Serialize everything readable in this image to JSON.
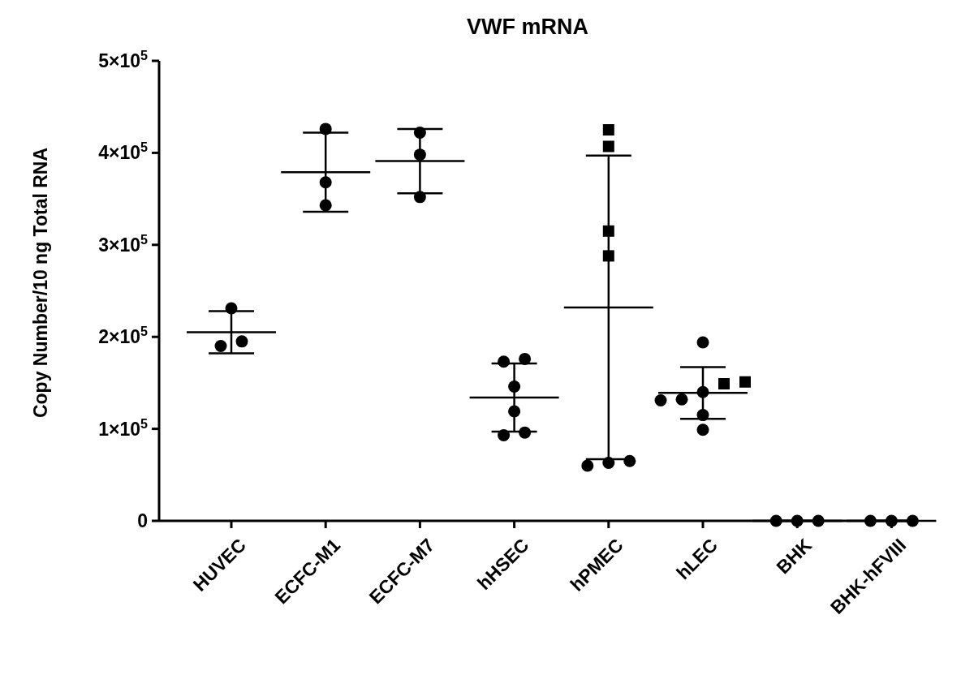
{
  "chart_data": {
    "type": "scatter",
    "title": "VWF mRNA",
    "ylabel": "Copy Number/10 ng Total RNA",
    "categories": [
      "HUVEC",
      "ECFC-M1",
      "ECFC-M7",
      "hHSEC",
      "hPMEC",
      "hLEC",
      "BHK",
      "BHK-hFVIII"
    ],
    "ylim": [
      0,
      500000
    ],
    "yticks": [
      0,
      {
        "value": 100000,
        "label": "1×10$^{5}$"
      },
      {
        "value": 200000,
        "label": "2×10$^{5}$"
      },
      {
        "value": 300000,
        "label": "3×10$^{5}$"
      },
      {
        "value": 400000,
        "label": "4×10$^{5}$"
      },
      {
        "value": 500000,
        "label": "5×10$^{5}$"
      }
    ],
    "grid": false,
    "series": [
      {
        "type": "scatter",
        "marker": "circle",
        "color": "#000000",
        "x": [
          "HUVEC",
          "HUVEC",
          "HUVEC",
          "ECFC-M1",
          "ECFC-M1",
          "ECFC-M1",
          "ECFC-M7",
          "ECFC-M7",
          "ECFC-M7",
          "hHSEC",
          "hHSEC",
          "hHSEC",
          "hHSEC",
          "hHSEC",
          "hHSEC",
          "hPMEC",
          "hPMEC",
          "hPMEC",
          "hLEC",
          "hLEC",
          "hLEC",
          "hLEC",
          "hLEC",
          "hLEC",
          "BHK",
          "BHK",
          "BHK",
          "BHK-hFVIII",
          "BHK-hFVIII",
          "BHK-hFVIII"
        ],
        "values": [
          231000,
          190000,
          195000,
          426000,
          368000,
          343000,
          422000,
          398000,
          352000,
          173000,
          176000,
          146000,
          119000,
          93000,
          96000,
          60000,
          65000,
          63000,
          194000,
          132000,
          140000,
          131000,
          115000,
          99000,
          0,
          0,
          0,
          0,
          0,
          0
        ]
      },
      {
        "type": "scatter",
        "marker": "square",
        "color": "#000000",
        "x": [
          "hPMEC",
          "hPMEC",
          "hPMEC",
          "hPMEC",
          "hLEC",
          "hLEC"
        ],
        "values": [
          425000,
          407000,
          315000,
          288000,
          149000,
          151000
        ]
      },
      {
        "type": "box",
        "color": "#000000",
        "boxes": [
          {
            "low": 182000,
            "q1": 205000,
            "median": 205000,
            "q3": 205000,
            "high": 228000
          },
          {
            "low": 336000,
            "q1": 379000,
            "median": 379000,
            "q3": 379000,
            "high": 422000
          },
          {
            "low": 356000,
            "q1": 391000,
            "median": 391000,
            "q3": 391000,
            "high": 426000
          },
          {
            "low": 97000,
            "q1": 134000,
            "median": 134000,
            "q3": 134000,
            "high": 171000
          },
          {
            "low": 67000,
            "q1": 232000,
            "median": 232000,
            "q3": 232000,
            "high": 397000
          },
          {
            "low": 111000,
            "q1": 139000,
            "median": 139000,
            "q3": 139000,
            "high": 167000
          },
          {
            "low": 0,
            "q1": 0,
            "median": 0,
            "q3": 0,
            "high": 0
          },
          {
            "low": 0,
            "q1": 0,
            "median": 0,
            "q3": 0,
            "high": 0
          }
        ]
      }
    ]
  }
}
